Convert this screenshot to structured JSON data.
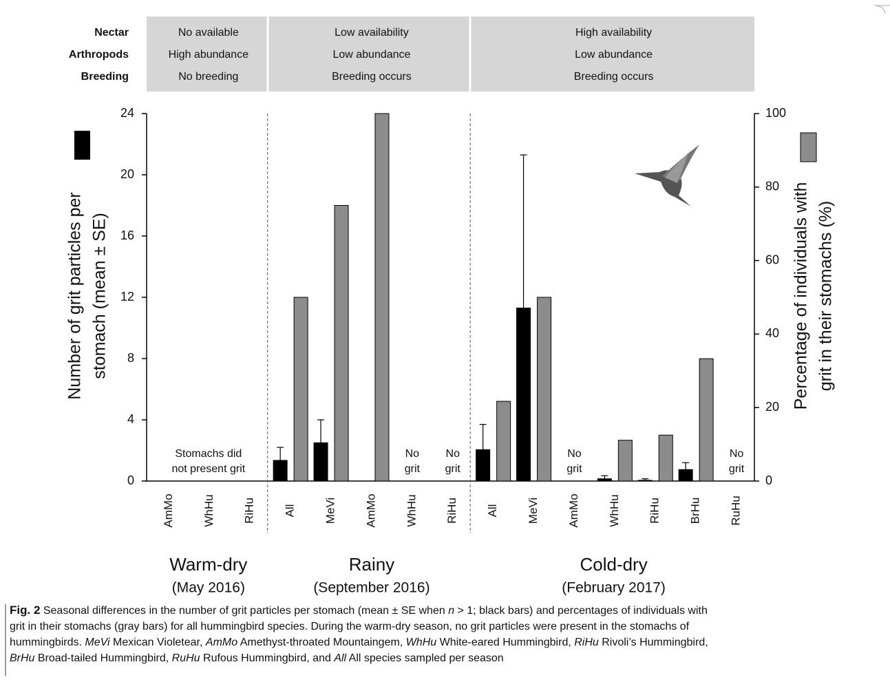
{
  "chart_data": {
    "type": "bar",
    "condition_labels": [
      "Nectar",
      "Arthropods",
      "Breeding"
    ],
    "groups": [
      {
        "name": "Warm-dry",
        "period": "(May 2016)",
        "conditions": [
          "No available",
          "High abundance",
          "No breeding"
        ],
        "note": [
          "Stomachs did",
          "not present grit"
        ],
        "categories": [
          "AmMo",
          "WhHu",
          "RiHu"
        ]
      },
      {
        "name": "Rainy",
        "period": "(September 2016)",
        "conditions": [
          "Low availability",
          "Low abundance",
          "Breeding occurs"
        ],
        "categories": [
          "All",
          "MeVi",
          "AmMo",
          "WhHu",
          "RiHu"
        ]
      },
      {
        "name": "Cold-dry",
        "period": "(February 2017)",
        "conditions": [
          "High availability",
          "Low abundance",
          "Breeding occurs"
        ],
        "categories": [
          "All",
          "MeVi",
          "AmMo",
          "WhHu",
          "RiHu",
          "BrHu",
          "RuHu"
        ]
      }
    ],
    "category_notes": [
      null,
      null,
      null,
      null,
      null,
      null,
      [
        "No",
        "grit"
      ],
      [
        "No",
        "grit"
      ],
      null,
      null,
      [
        "No",
        "grit"
      ],
      null,
      null,
      null,
      [
        "No",
        "grit"
      ]
    ],
    "series": [
      {
        "color": "#000000",
        "values": [
          null,
          null,
          null,
          1.35,
          2.5,
          null,
          null,
          null,
          2.05,
          11.3,
          null,
          0.15,
          0.05,
          0.75,
          null
        ],
        "errors": [
          null,
          null,
          null,
          0.85,
          1.5,
          null,
          null,
          null,
          1.65,
          10,
          null,
          0.2,
          0.1,
          0.45,
          null
        ]
      },
      {
        "color": "#8c8c8c",
        "axis": "y2",
        "values": [
          null,
          null,
          null,
          50,
          75,
          100,
          null,
          null,
          21.7,
          50,
          null,
          11.1,
          12.5,
          33.3,
          null
        ]
      }
    ],
    "ylabel": [
      "Number of grit particles per",
      "stomach (mean ± SE)"
    ],
    "y2label": [
      "Percentage of individuals with",
      "grit in their stomachs (%)"
    ],
    "ylim": [
      0,
      24
    ],
    "yticks": [
      0,
      4,
      8,
      12,
      16,
      20,
      24
    ],
    "y2lim": [
      0,
      100
    ],
    "y2ticks": [
      0,
      20,
      40,
      60,
      80,
      100
    ],
    "caption_lines": [
      [
        {
          "text": "Fig. 2",
          "bold": true
        },
        {
          "text": "  Seasonal differences in the number of grit particles per stomach (mean ± SE when "
        },
        {
          "text": "n",
          "italic": true
        },
        {
          "text": " > 1; black bars) and percentages of individuals with"
        }
      ],
      [
        {
          "text": "grit in their stomachs (gray bars) for all hummingbird species. During the warm-dry season, no grit particles were present in the stomachs of"
        }
      ],
      [
        {
          "text": "hummingbirds. "
        },
        {
          "text": "MeVi",
          "italic": true
        },
        {
          "text": " Mexican Violetear, "
        },
        {
          "text": "AmMo",
          "italic": true
        },
        {
          "text": " Amethyst-throated Mountaingem, "
        },
        {
          "text": "WhHu",
          "italic": true
        },
        {
          "text": " White-eared Hummingbird, "
        },
        {
          "text": "RiHu",
          "italic": true
        },
        {
          "text": " Rivoli’s Hummingbird,"
        }
      ],
      [
        {
          "text": "BrHu",
          "italic": true
        },
        {
          "text": " Broad-tailed Hummingbird, "
        },
        {
          "text": "RuHu",
          "italic": true
        },
        {
          "text": " Rufous Hummingbird, and "
        },
        {
          "text": "All",
          "italic": true
        },
        {
          "text": " All species sampled per season"
        }
      ]
    ]
  }
}
